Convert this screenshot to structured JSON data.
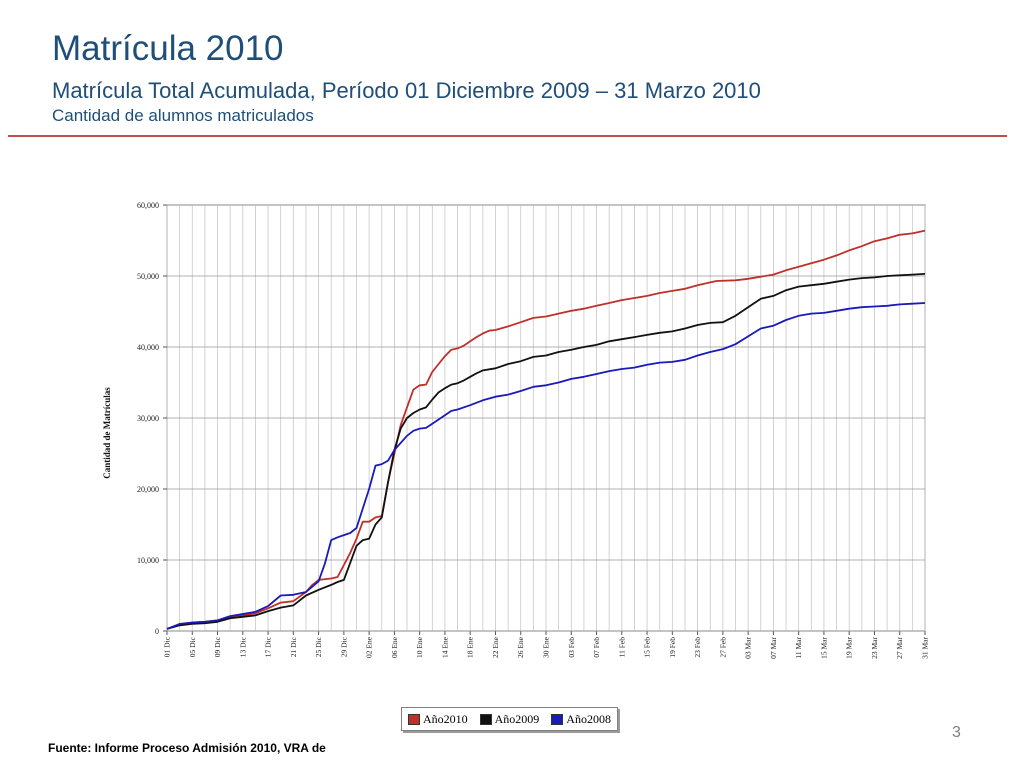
{
  "slide": {
    "title": "Matrícula 2010",
    "subtitle": "Matrícula Total Acumulada, Período 01 Diciembre 2009 – 31 Marzo 2010",
    "caption": "Cantidad de alumnos matriculados",
    "source": "Fuente: Informe Proceso Admisión 2010, VRA de",
    "page_number": "3",
    "accent_color": "#c0504d",
    "title_color": "#1f4e79"
  },
  "chart_data": {
    "type": "line",
    "title": "",
    "xlabel": "",
    "ylabel": "Cantidad de Matrículas",
    "ylim": [
      0,
      60000
    ],
    "yticks": [
      0,
      10000,
      20000,
      30000,
      40000,
      50000,
      60000
    ],
    "ytick_labels": [
      "0",
      "10,000",
      "20,000",
      "30,000",
      "40,000",
      "50,000",
      "60,000"
    ],
    "xtick_labels": [
      "01 Dic",
      "05 Dic",
      "09 Dic",
      "13 Dic",
      "17 Dic",
      "21 Dic",
      "25 Dic",
      "29 Dic",
      "02 Ene",
      "06 Ene",
      "10 Ene",
      "14 Ene",
      "18 Ene",
      "22 Ene",
      "26 Ene",
      "30 Ene",
      "03 Feb",
      "07 Feb",
      "11 Feb",
      "15 Feb",
      "19 Feb",
      "23 Feb",
      "27 Feb",
      "03 Mar",
      "07 Mar",
      "11 Mar",
      "15 Mar",
      "19 Mar",
      "23 Mar",
      "27 Mar",
      "31 Mar"
    ],
    "x_day_range": [
      0,
      120
    ],
    "grid": true,
    "legend_position": "bottom-center",
    "series": [
      {
        "name": "Año2010",
        "color": "#c0302a",
        "points": [
          [
            0,
            300
          ],
          [
            2,
            900
          ],
          [
            4,
            1200
          ],
          [
            6,
            1300
          ],
          [
            8,
            1500
          ],
          [
            10,
            2000
          ],
          [
            12,
            2200
          ],
          [
            14,
            2500
          ],
          [
            16,
            3200
          ],
          [
            18,
            4000
          ],
          [
            20,
            4200
          ],
          [
            22,
            5500
          ],
          [
            23,
            6500
          ],
          [
            24,
            7200
          ],
          [
            26,
            7400
          ],
          [
            27,
            7600
          ],
          [
            29,
            11000
          ],
          [
            30,
            13000
          ],
          [
            31,
            15400
          ],
          [
            32,
            15400
          ],
          [
            33,
            16000
          ],
          [
            34,
            16200
          ],
          [
            35,
            21000
          ],
          [
            36,
            25000
          ],
          [
            37,
            29000
          ],
          [
            38,
            31500
          ],
          [
            39,
            34000
          ],
          [
            40,
            34600
          ],
          [
            41,
            34700
          ],
          [
            42,
            36500
          ],
          [
            43,
            37600
          ],
          [
            44,
            38700
          ],
          [
            45,
            39600
          ],
          [
            46,
            39800
          ],
          [
            47,
            40200
          ],
          [
            48,
            40800
          ],
          [
            49,
            41400
          ],
          [
            50,
            41900
          ],
          [
            51,
            42300
          ],
          [
            52,
            42400
          ],
          [
            54,
            42900
          ],
          [
            56,
            43500
          ],
          [
            58,
            44100
          ],
          [
            60,
            44300
          ],
          [
            62,
            44700
          ],
          [
            64,
            45100
          ],
          [
            66,
            45400
          ],
          [
            68,
            45800
          ],
          [
            70,
            46200
          ],
          [
            72,
            46600
          ],
          [
            74,
            46900
          ],
          [
            76,
            47200
          ],
          [
            78,
            47600
          ],
          [
            80,
            47900
          ],
          [
            82,
            48200
          ],
          [
            84,
            48700
          ],
          [
            86,
            49100
          ],
          [
            87,
            49300
          ],
          [
            90,
            49400
          ],
          [
            92,
            49600
          ],
          [
            94,
            49900
          ],
          [
            96,
            50200
          ],
          [
            98,
            50800
          ],
          [
            100,
            51300
          ],
          [
            102,
            51800
          ],
          [
            104,
            52300
          ],
          [
            106,
            52900
          ],
          [
            108,
            53600
          ],
          [
            110,
            54200
          ],
          [
            112,
            54900
          ],
          [
            114,
            55300
          ],
          [
            116,
            55800
          ],
          [
            118,
            56000
          ],
          [
            120,
            56400
          ]
        ]
      },
      {
        "name": "Año2009",
        "color": "#111111",
        "points": [
          [
            0,
            300
          ],
          [
            2,
            800
          ],
          [
            4,
            1000
          ],
          [
            6,
            1100
          ],
          [
            8,
            1300
          ],
          [
            10,
            1800
          ],
          [
            12,
            2000
          ],
          [
            14,
            2200
          ],
          [
            16,
            2800
          ],
          [
            18,
            3300
          ],
          [
            20,
            3600
          ],
          [
            22,
            5000
          ],
          [
            24,
            5800
          ],
          [
            26,
            6500
          ],
          [
            27,
            6900
          ],
          [
            28,
            7200
          ],
          [
            30,
            12000
          ],
          [
            31,
            12800
          ],
          [
            32,
            13000
          ],
          [
            33,
            15000
          ],
          [
            34,
            16000
          ],
          [
            35,
            21000
          ],
          [
            36,
            25500
          ],
          [
            37,
            28500
          ],
          [
            38,
            30000
          ],
          [
            39,
            30700
          ],
          [
            40,
            31200
          ],
          [
            41,
            31500
          ],
          [
            42,
            32600
          ],
          [
            43,
            33600
          ],
          [
            44,
            34200
          ],
          [
            45,
            34700
          ],
          [
            46,
            34900
          ],
          [
            47,
            35300
          ],
          [
            48,
            35800
          ],
          [
            49,
            36300
          ],
          [
            50,
            36700
          ],
          [
            52,
            37000
          ],
          [
            54,
            37600
          ],
          [
            56,
            38000
          ],
          [
            58,
            38600
          ],
          [
            60,
            38800
          ],
          [
            62,
            39300
          ],
          [
            64,
            39600
          ],
          [
            66,
            40000
          ],
          [
            68,
            40300
          ],
          [
            70,
            40800
          ],
          [
            72,
            41100
          ],
          [
            74,
            41400
          ],
          [
            76,
            41700
          ],
          [
            78,
            42000
          ],
          [
            80,
            42200
          ],
          [
            82,
            42600
          ],
          [
            84,
            43100
          ],
          [
            86,
            43400
          ],
          [
            88,
            43500
          ],
          [
            90,
            44400
          ],
          [
            92,
            45600
          ],
          [
            94,
            46800
          ],
          [
            96,
            47200
          ],
          [
            98,
            48000
          ],
          [
            100,
            48500
          ],
          [
            102,
            48700
          ],
          [
            104,
            48900
          ],
          [
            106,
            49200
          ],
          [
            108,
            49500
          ],
          [
            110,
            49700
          ],
          [
            112,
            49800
          ],
          [
            114,
            50000
          ],
          [
            116,
            50100
          ],
          [
            118,
            50200
          ],
          [
            120,
            50300
          ]
        ]
      },
      {
        "name": "Año2008",
        "color": "#1a1ab8",
        "points": [
          [
            0,
            300
          ],
          [
            2,
            1000
          ],
          [
            4,
            1200
          ],
          [
            6,
            1300
          ],
          [
            8,
            1500
          ],
          [
            10,
            2100
          ],
          [
            12,
            2400
          ],
          [
            14,
            2700
          ],
          [
            16,
            3500
          ],
          [
            18,
            5000
          ],
          [
            20,
            5100
          ],
          [
            22,
            5500
          ],
          [
            24,
            7000
          ],
          [
            25,
            9500
          ],
          [
            26,
            12800
          ],
          [
            27,
            13200
          ],
          [
            28,
            13500
          ],
          [
            29,
            13800
          ],
          [
            30,
            14500
          ],
          [
            32,
            20000
          ],
          [
            33,
            23300
          ],
          [
            34,
            23500
          ],
          [
            35,
            24000
          ],
          [
            36,
            25500
          ],
          [
            38,
            27500
          ],
          [
            39,
            28200
          ],
          [
            40,
            28500
          ],
          [
            41,
            28600
          ],
          [
            42,
            29200
          ],
          [
            44,
            30400
          ],
          [
            45,
            31000
          ],
          [
            46,
            31200
          ],
          [
            48,
            31800
          ],
          [
            50,
            32500
          ],
          [
            52,
            33000
          ],
          [
            54,
            33300
          ],
          [
            56,
            33800
          ],
          [
            58,
            34400
          ],
          [
            60,
            34600
          ],
          [
            62,
            35000
          ],
          [
            64,
            35500
          ],
          [
            66,
            35800
          ],
          [
            68,
            36200
          ],
          [
            70,
            36600
          ],
          [
            72,
            36900
          ],
          [
            74,
            37100
          ],
          [
            76,
            37500
          ],
          [
            78,
            37800
          ],
          [
            80,
            37900
          ],
          [
            82,
            38200
          ],
          [
            84,
            38800
          ],
          [
            86,
            39300
          ],
          [
            88,
            39700
          ],
          [
            90,
            40400
          ],
          [
            92,
            41500
          ],
          [
            94,
            42600
          ],
          [
            96,
            43000
          ],
          [
            98,
            43800
          ],
          [
            100,
            44400
          ],
          [
            102,
            44700
          ],
          [
            104,
            44800
          ],
          [
            106,
            45100
          ],
          [
            108,
            45400
          ],
          [
            110,
            45600
          ],
          [
            112,
            45700
          ],
          [
            114,
            45800
          ],
          [
            116,
            46000
          ],
          [
            118,
            46100
          ],
          [
            120,
            46200
          ]
        ]
      }
    ]
  }
}
